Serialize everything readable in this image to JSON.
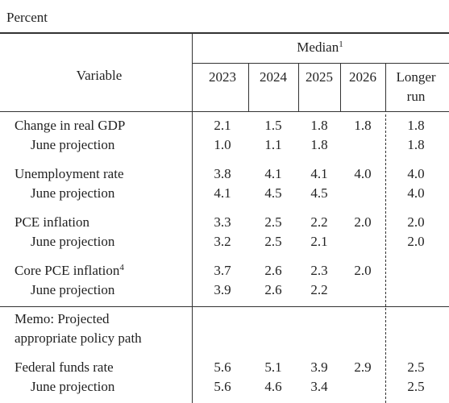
{
  "caption": "Percent",
  "header": {
    "variable": "Variable",
    "group": "Median",
    "group_note": "1",
    "columns": [
      [
        "2023"
      ],
      [
        "2024"
      ],
      [
        "2025"
      ],
      [
        "2026"
      ],
      [
        "Longer",
        "run"
      ]
    ]
  },
  "rows": [
    {
      "label": "Change in real GDP",
      "values": [
        "2.1",
        "1.5",
        "1.8",
        "1.8",
        "1.8"
      ]
    },
    {
      "label": "June projection",
      "values": [
        "1.0",
        "1.1",
        "1.8",
        null,
        "1.8"
      ]
    },
    {
      "label": "Unemployment rate",
      "values": [
        "3.8",
        "4.1",
        "4.1",
        "4.0",
        "4.0"
      ]
    },
    {
      "label": "June projection",
      "values": [
        "4.1",
        "4.5",
        "4.5",
        null,
        "4.0"
      ]
    },
    {
      "label": "PCE inflation",
      "values": [
        "3.3",
        "2.5",
        "2.2",
        "2.0",
        "2.0"
      ]
    },
    {
      "label": "June projection",
      "values": [
        "3.2",
        "2.5",
        "2.1",
        null,
        "2.0"
      ]
    },
    {
      "label": "Core PCE inflation",
      "note": "4",
      "values": [
        "3.7",
        "2.6",
        "2.3",
        "2.0",
        null
      ]
    },
    {
      "label": "June projection",
      "values": [
        "3.9",
        "2.6",
        "2.2",
        null,
        null
      ]
    },
    {
      "label_lines": [
        "Memo: Projected",
        "appropriate policy path"
      ],
      "values": [
        null,
        null,
        null,
        null,
        null
      ]
    },
    {
      "label": "Federal funds rate",
      "values": [
        "5.6",
        "5.1",
        "3.9",
        "2.9",
        "2.5"
      ]
    },
    {
      "label": "June projection",
      "values": [
        "5.6",
        "4.6",
        "3.4",
        null,
        "2.5"
      ]
    }
  ]
}
